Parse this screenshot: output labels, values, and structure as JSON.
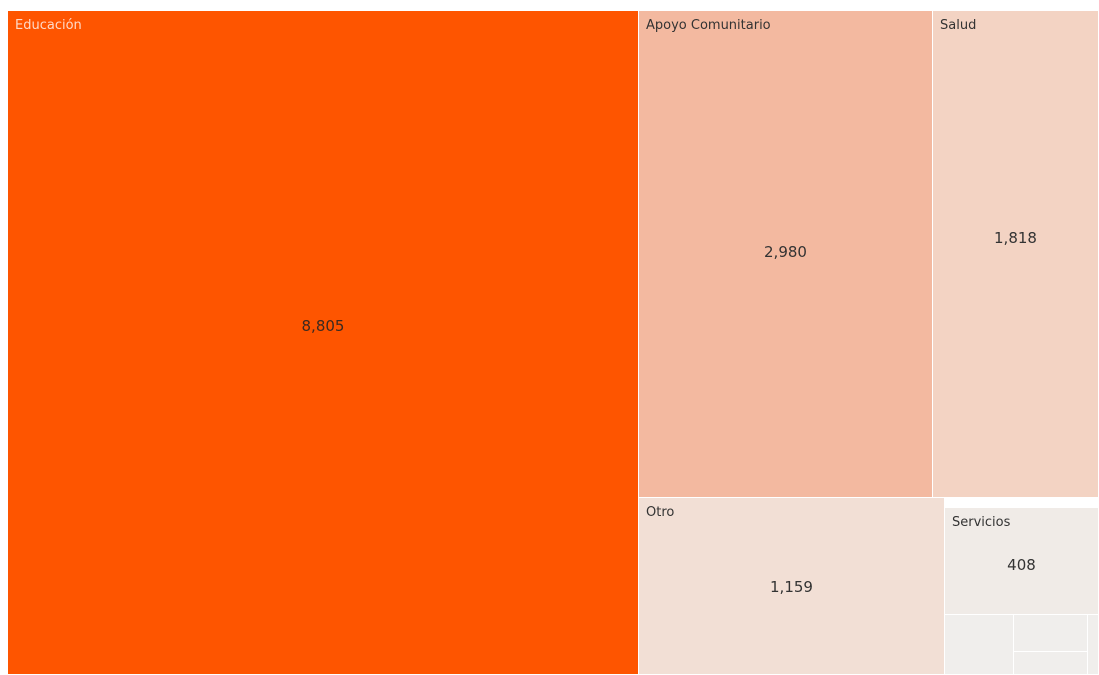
{
  "chart_data": {
    "type": "treemap",
    "title": "",
    "items": [
      {
        "label": "Educación",
        "value": 8805,
        "value_text": "8,805",
        "color": "#fe5500"
      },
      {
        "label": "Apoyo Comunitario",
        "value": 2980,
        "value_text": "2,980",
        "color": "#f3b9a0"
      },
      {
        "label": "Salud",
        "value": 1818,
        "value_text": "1,818",
        "color": "#f3d3c3"
      },
      {
        "label": "Otro",
        "value": 1159,
        "value_text": "1,159",
        "color": "#f2dfd5"
      },
      {
        "label": "Servicios",
        "value": 408,
        "value_text": "408",
        "color": "#f0ebe7"
      }
    ],
    "unlabeled_minor_tiles": 4,
    "minor_tile_color": "#f0eeec"
  }
}
